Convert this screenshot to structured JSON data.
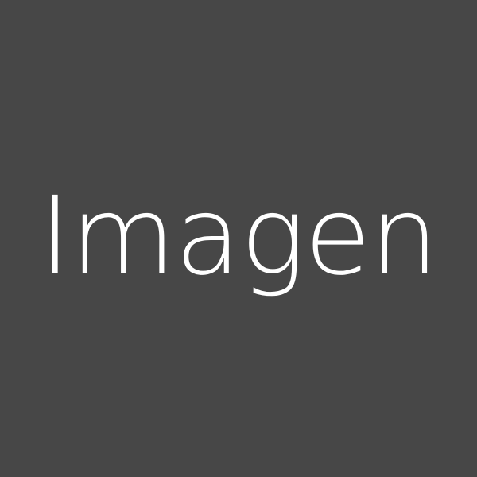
{
  "placeholder": {
    "label": "Imagen"
  },
  "colors": {
    "background": "#474747",
    "text": "#ffffff"
  }
}
